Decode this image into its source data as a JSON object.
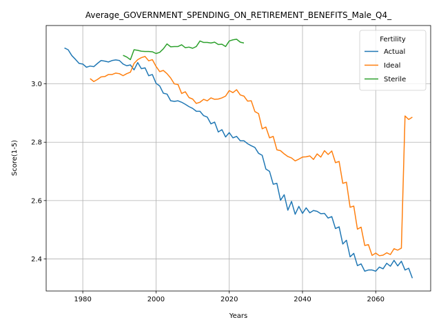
{
  "chart_data": {
    "type": "line",
    "title": "Average_GOVERNMENT_SPENDING_ON_RETIREMENT_BENEFITS_Male_Q4_",
    "xlabel": "Years",
    "ylabel": "Score(1-5)",
    "xlim": [
      1970,
      2075
    ],
    "ylim": [
      2.29,
      3.2
    ],
    "xticks": [
      1980,
      2000,
      2020,
      2040,
      2060
    ],
    "yticks": [
      2.4,
      2.6,
      2.8,
      3.0
    ],
    "ytick_labels": [
      "2.4",
      "2.6",
      "2.8",
      "3.0"
    ],
    "grid": true,
    "legend": {
      "title": "Fertility",
      "position": "upper-right"
    },
    "series": [
      {
        "name": "Actual",
        "color": "#1f77b4",
        "x": [
          1975,
          1976,
          1977,
          1978,
          1979,
          1980,
          1981,
          1982,
          1983,
          1984,
          1985,
          1986,
          1987,
          1988,
          1989,
          1990,
          1991,
          1992,
          1993,
          1994,
          1995,
          1996,
          1997,
          1998,
          1999,
          2000,
          2001,
          2002,
          2003,
          2004,
          2005,
          2006,
          2007,
          2008,
          2009,
          2010,
          2011,
          2012,
          2013,
          2014,
          2015,
          2016,
          2017,
          2018,
          2019,
          2020,
          2021,
          2022,
          2023,
          2024,
          2025,
          2026,
          2027,
          2028,
          2029,
          2030,
          2031,
          2032,
          2033,
          2034,
          2035,
          2036,
          2037,
          2038,
          2039,
          2040,
          2041,
          2042,
          2043,
          2044,
          2045,
          2046,
          2047,
          2048,
          2049,
          2050,
          2051,
          2052,
          2053,
          2054,
          2055,
          2056,
          2057,
          2058,
          2059,
          2060,
          2061,
          2062,
          2063,
          2064,
          2065,
          2066,
          2067,
          2068,
          2069,
          2070
        ],
        "y": [
          3.123,
          3.117,
          3.097,
          3.084,
          3.07,
          3.068,
          3.057,
          3.061,
          3.059,
          3.07,
          3.08,
          3.078,
          3.075,
          3.08,
          3.082,
          3.08,
          3.068,
          3.062,
          3.065,
          3.048,
          3.073,
          3.052,
          3.055,
          3.028,
          3.032,
          3.002,
          2.993,
          2.968,
          2.965,
          2.942,
          2.94,
          2.942,
          2.937,
          2.93,
          2.922,
          2.916,
          2.906,
          2.906,
          2.891,
          2.886,
          2.863,
          2.869,
          2.835,
          2.843,
          2.818,
          2.833,
          2.815,
          2.82,
          2.805,
          2.805,
          2.795,
          2.788,
          2.782,
          2.762,
          2.755,
          2.708,
          2.7,
          2.656,
          2.659,
          2.601,
          2.62,
          2.567,
          2.597,
          2.553,
          2.58,
          2.556,
          2.575,
          2.558,
          2.566,
          2.563,
          2.555,
          2.556,
          2.54,
          2.545,
          2.504,
          2.51,
          2.451,
          2.464,
          2.407,
          2.419,
          2.377,
          2.383,
          2.358,
          2.362,
          2.362,
          2.358,
          2.372,
          2.366,
          2.385,
          2.375,
          2.395,
          2.376,
          2.392,
          2.362,
          2.368,
          2.334
        ]
      },
      {
        "name": "Ideal",
        "color": "#ff7f0e",
        "x": [
          1982,
          1983,
          1984,
          1985,
          1986,
          1987,
          1988,
          1989,
          1990,
          1991,
          1992,
          1993,
          1994,
          1995,
          1996,
          1997,
          1998,
          1999,
          2000,
          2001,
          2002,
          2003,
          2004,
          2005,
          2006,
          2007,
          2008,
          2009,
          2010,
          2011,
          2012,
          2013,
          2014,
          2015,
          2016,
          2017,
          2018,
          2019,
          2020,
          2021,
          2022,
          2023,
          2024,
          2025,
          2026,
          2027,
          2028,
          2029,
          2030,
          2031,
          2032,
          2033,
          2034,
          2035,
          2036,
          2037,
          2038,
          2039,
          2040,
          2041,
          2042,
          2043,
          2044,
          2045,
          2046,
          2047,
          2048,
          2049,
          2050,
          2051,
          2052,
          2053,
          2054,
          2055,
          2056,
          2057,
          2058,
          2059,
          2060,
          2061,
          2062,
          2063,
          2064,
          2065,
          2066,
          2067,
          2068,
          2069,
          2070
        ],
        "y": [
          3.018,
          3.008,
          3.015,
          3.024,
          3.025,
          3.032,
          3.032,
          3.037,
          3.035,
          3.028,
          3.035,
          3.04,
          3.07,
          3.083,
          3.09,
          3.094,
          3.079,
          3.083,
          3.06,
          3.042,
          3.046,
          3.035,
          3.02,
          3.0,
          2.998,
          2.967,
          2.973,
          2.953,
          2.948,
          2.933,
          2.937,
          2.947,
          2.942,
          2.952,
          2.947,
          2.948,
          2.952,
          2.958,
          2.977,
          2.97,
          2.98,
          2.962,
          2.958,
          2.941,
          2.942,
          2.905,
          2.898,
          2.846,
          2.852,
          2.815,
          2.82,
          2.774,
          2.771,
          2.76,
          2.751,
          2.746,
          2.736,
          2.742,
          2.749,
          2.75,
          2.753,
          2.741,
          2.76,
          2.749,
          2.771,
          2.758,
          2.77,
          2.73,
          2.734,
          2.659,
          2.663,
          2.577,
          2.581,
          2.502,
          2.509,
          2.446,
          2.449,
          2.412,
          2.42,
          2.411,
          2.413,
          2.421,
          2.415,
          2.435,
          2.43,
          2.437,
          2.89,
          2.878,
          2.886
        ]
      },
      {
        "name": "Sterile",
        "color": "#2ca02c",
        "x": [
          1991,
          1992,
          1993,
          1994,
          1995,
          1996,
          1997,
          1998,
          1999,
          2000,
          2001,
          2002,
          2003,
          2004,
          2005,
          2006,
          2007,
          2008,
          2009,
          2010,
          2011,
          2012,
          2013,
          2014,
          2015,
          2016,
          2017,
          2018,
          2019,
          2020,
          2021,
          2022,
          2023,
          2024
        ],
        "y": [
          3.098,
          3.092,
          3.083,
          3.117,
          3.115,
          3.112,
          3.111,
          3.111,
          3.11,
          3.104,
          3.108,
          3.12,
          3.137,
          3.127,
          3.128,
          3.128,
          3.134,
          3.124,
          3.126,
          3.122,
          3.128,
          3.147,
          3.142,
          3.142,
          3.14,
          3.143,
          3.135,
          3.136,
          3.128,
          3.147,
          3.151,
          3.153,
          3.143,
          3.14
        ]
      }
    ]
  }
}
